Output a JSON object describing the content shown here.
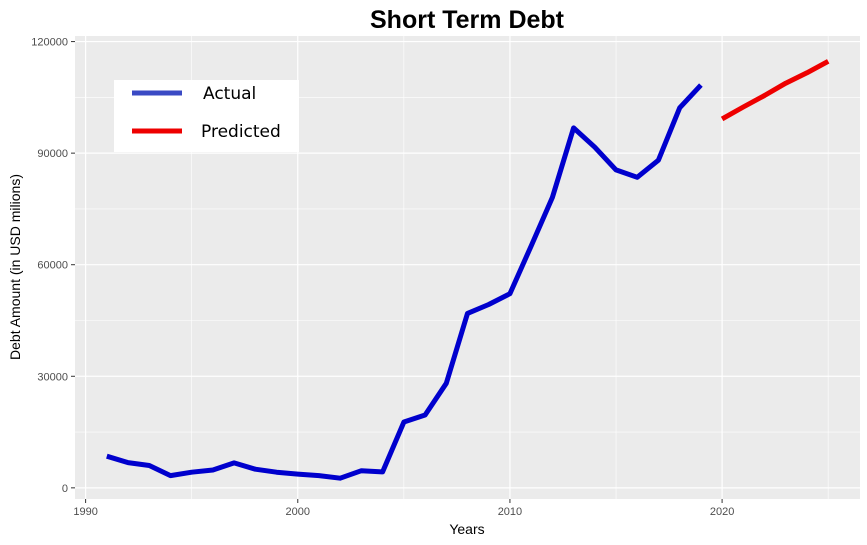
{
  "chart_data": {
    "type": "line",
    "title": "Short Term Debt",
    "xlabel": "Years",
    "ylabel": "Debt Amount (in USD milions)",
    "xlim": [
      1989.5,
      2026.5
    ],
    "ylim": [
      -3000,
      121500
    ],
    "x_ticks": [
      1990,
      2000,
      2010,
      2020
    ],
    "x_tick_labels": [
      "1990",
      "2000",
      "2010",
      "2020"
    ],
    "y_ticks": [
      0,
      30000,
      60000,
      90000,
      120000
    ],
    "y_tick_labels": [
      "0",
      "30000",
      "60000",
      "90000",
      "120000"
    ],
    "grid": true,
    "legend_position": "top-left",
    "series": [
      {
        "name": "Actual",
        "color": "#0000cd",
        "legend_color": "#3a4ac4",
        "x": [
          1991,
          1992,
          1993,
          1994,
          1995,
          1996,
          1997,
          1998,
          1999,
          2000,
          2001,
          2002,
          2003,
          2004,
          2005,
          2006,
          2007,
          2008,
          2009,
          2010,
          2011,
          2012,
          2013,
          2014,
          2015,
          2016,
          2017,
          2018,
          2019
        ],
        "y": [
          8500,
          6800,
          6000,
          3300,
          4200,
          4800,
          6700,
          5000,
          4200,
          3700,
          3300,
          2600,
          4600,
          4300,
          17700,
          19600,
          28100,
          46900,
          49300,
          52200,
          65000,
          78100,
          96800,
          91600,
          85500,
          83500,
          88100,
          102200,
          108300
        ]
      },
      {
        "name": "Predicted",
        "color": "#ee0000",
        "legend_color": "#ee0000",
        "x": [
          2020,
          2021,
          2022,
          2023,
          2024,
          2025
        ],
        "y": [
          99200,
          102400,
          105500,
          108800,
          111600,
          114700
        ]
      }
    ]
  }
}
